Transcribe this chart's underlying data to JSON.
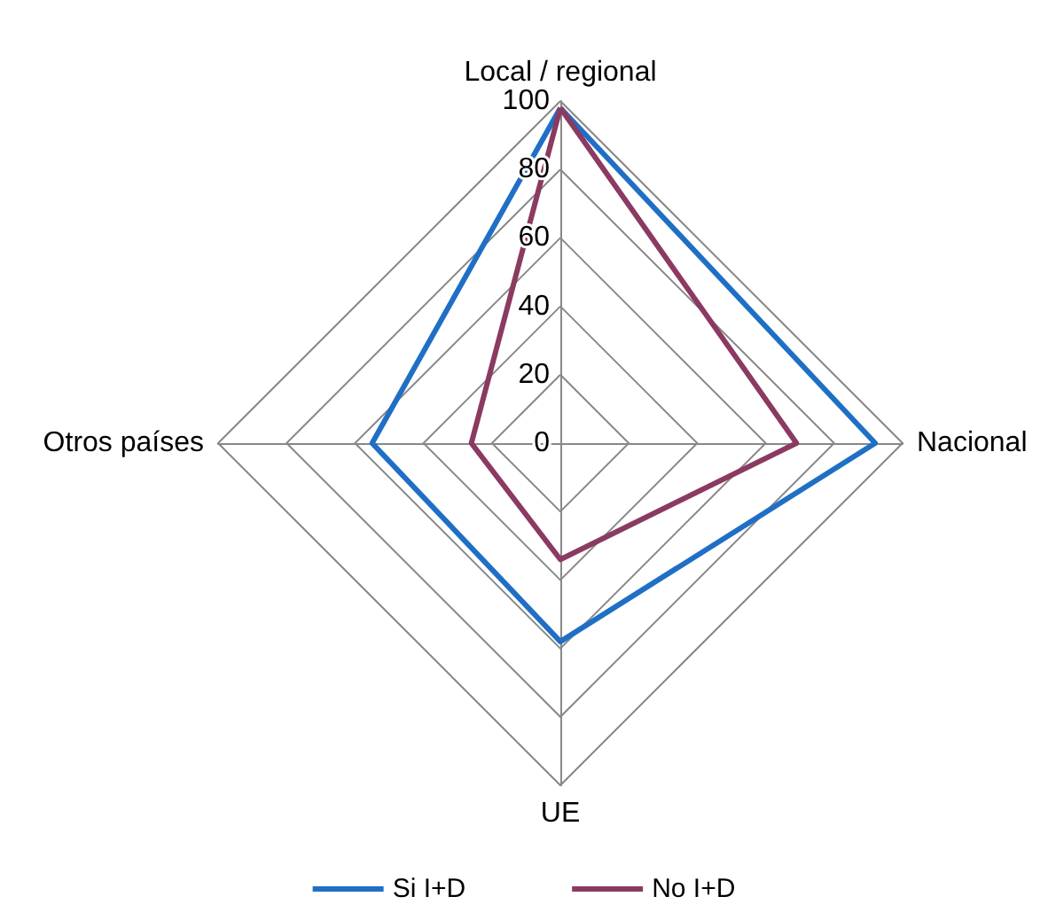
{
  "chart_data": {
    "type": "radar",
    "categories": [
      "Local / regional",
      "Nacional",
      "UE",
      "Otros países"
    ],
    "ylim": [
      0,
      100
    ],
    "yticks": [
      0,
      20,
      40,
      60,
      80,
      100
    ],
    "legend": "bottom",
    "grid": true,
    "series": [
      {
        "name": "Si I+D",
        "color": "#1f6fc5",
        "values": [
          98,
          92,
          58,
          55
        ]
      },
      {
        "name": "No I+D",
        "color": "#8b3a62",
        "values": [
          98,
          69,
          34,
          26
        ]
      }
    ]
  }
}
